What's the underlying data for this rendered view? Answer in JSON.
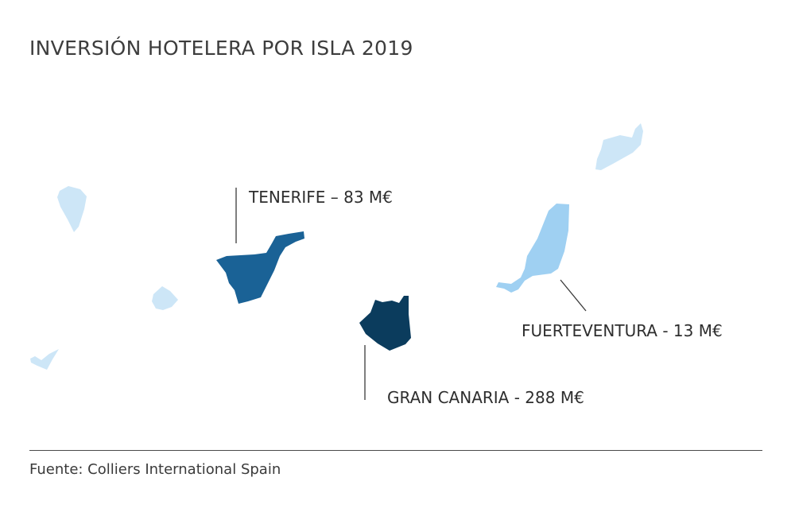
{
  "map": {
    "title": "INVERSIÓN HOTELERA POR ISLA 2019",
    "source": "Fuente: Colliers International Spain",
    "colors": {
      "other_islands": "#cde6f7",
      "fuerteventura": "#9fd0f2",
      "tenerife": "#1a6296",
      "gran_canaria": "#0b3c5d",
      "leader_line": "#3a3a3a"
    },
    "islands": [
      {
        "name": "Tenerife",
        "label": "TENERIFE  – 83 M€",
        "value_meur": 83
      },
      {
        "name": "Gran Canaria",
        "label": "GRAN CANARIA  - 288 M€",
        "value_meur": 288
      },
      {
        "name": "Fuerteventura",
        "label": "FUERTEVENTURA  - 13 M€",
        "value_meur": 13
      }
    ]
  }
}
